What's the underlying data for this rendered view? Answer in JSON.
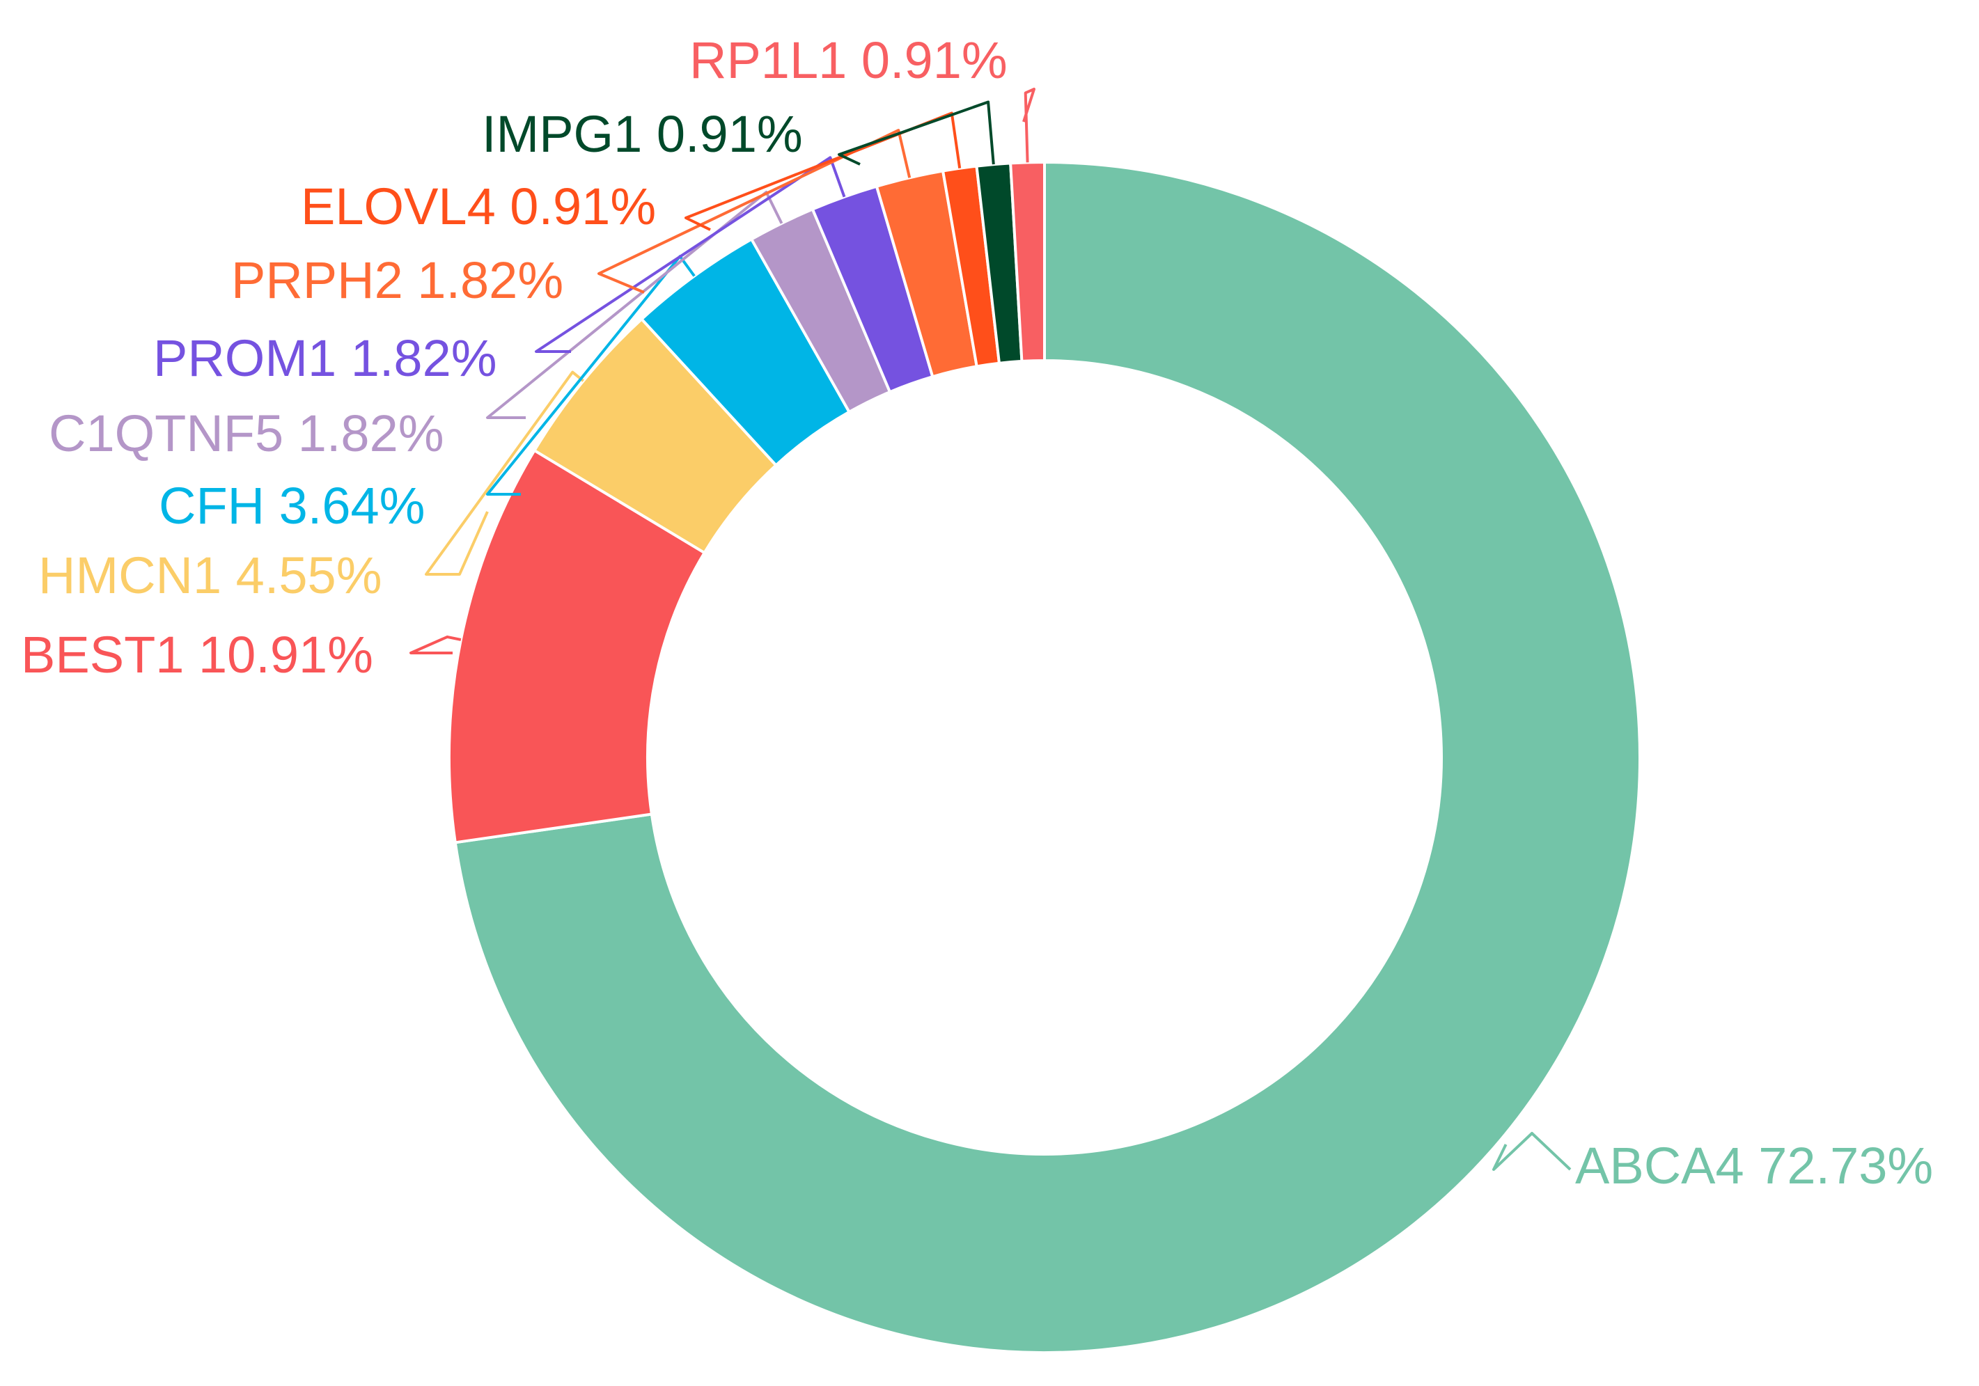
{
  "chart_data": {
    "type": "pie",
    "variant": "donut",
    "title": "",
    "slices": [
      {
        "label": "ABCA4",
        "value": 72.73,
        "text": "ABCA4 72.73%",
        "color": "#73c4a8"
      },
      {
        "label": "BEST1",
        "value": 10.91,
        "text": "BEST1 10.91%",
        "color": "#f95557"
      },
      {
        "label": "HMCN1",
        "value": 4.55,
        "text": "HMCN1 4.55%",
        "color": "#fbcd68"
      },
      {
        "label": "CFH",
        "value": 3.64,
        "text": "CFH 3.64%",
        "color": "#00b5e6"
      },
      {
        "label": "C1QTNF5",
        "value": 1.82,
        "text": "C1QTNF5 1.82%",
        "color": "#b496c8"
      },
      {
        "label": "PROM1",
        "value": 1.82,
        "text": "PROM1 1.82%",
        "color": "#7552e0"
      },
      {
        "label": "PRPH2",
        "value": 1.82,
        "text": "PRPH2 1.82%",
        "color": "#ff6b35"
      },
      {
        "label": "ELOVL4",
        "value": 0.91,
        "text": "ELOVL4 0.91%",
        "color": "#ff4f1a"
      },
      {
        "label": "IMPG1",
        "value": 0.91,
        "text": "IMPG1 0.91%",
        "color": "#00492a"
      },
      {
        "label": "RP1L1",
        "value": 0.91,
        "text": "RP1L1 0.91%",
        "color": "#f85f62"
      }
    ],
    "legend": "none"
  }
}
